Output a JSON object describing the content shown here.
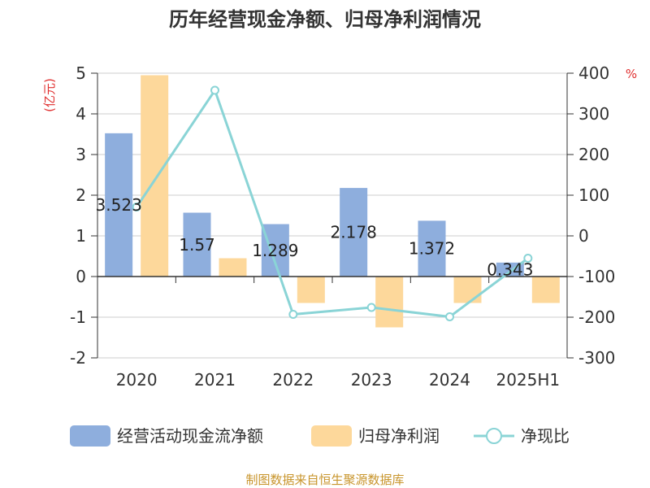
{
  "chart_data": {
    "type": "bar",
    "title": "历年经营现金净额、归母净利润情况",
    "categories": [
      "2020",
      "2021",
      "2022",
      "2023",
      "2024",
      "2025H1"
    ],
    "left_axis": {
      "unit": "(亿元)",
      "ylim": [
        -2,
        5
      ],
      "ticks": [
        "5",
        "4",
        "3",
        "2",
        "1",
        "0",
        "-1",
        "-2"
      ]
    },
    "right_axis": {
      "unit": "%",
      "ylim": [
        -300,
        400
      ],
      "ticks": [
        "400",
        "300",
        "200",
        "100",
        "0",
        "-100",
        "-200",
        "-300"
      ]
    },
    "series": [
      {
        "name": "经营活动现金流净额",
        "type": "bar",
        "axis": "left",
        "color": "#8eaedd",
        "values": [
          3.523,
          1.57,
          1.289,
          2.178,
          1.372,
          0.343
        ],
        "labels": [
          "3.523",
          "1.57",
          "1.289",
          "2.178",
          "1.372",
          "0.343"
        ]
      },
      {
        "name": "归母净利润",
        "type": "bar",
        "axis": "left",
        "color": "#fdd89b",
        "values": [
          4.95,
          0.45,
          -0.65,
          -1.25,
          -0.65,
          -0.65
        ]
      },
      {
        "name": "净现比",
        "type": "line",
        "axis": "right",
        "color": "#8ad4d6",
        "values": [
          71,
          358,
          -193,
          -176,
          -199,
          -55
        ]
      }
    ],
    "grid": true,
    "legend_position": "bottom"
  },
  "source": "制图数据来自恒生聚源数据库"
}
